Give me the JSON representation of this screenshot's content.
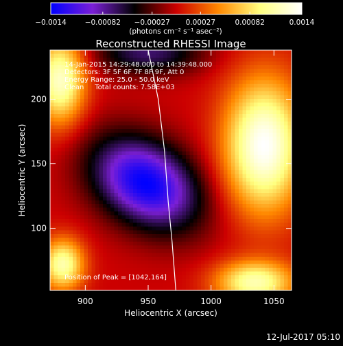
{
  "chart_data": {
    "type": "heatmap",
    "title": "Reconstructed RHESSI Image",
    "xlabel": "Heliocentric X (arcsec)",
    "ylabel": "Heliocentric Y (arcsec)",
    "xlim": [
      872,
      1064
    ],
    "ylim": [
      52,
      238
    ],
    "x_ticks": [
      {
        "value": 900,
        "label": "900"
      },
      {
        "value": 950,
        "label": "950"
      },
      {
        "value": 1000,
        "label": "1000"
      },
      {
        "value": 1050,
        "label": "1050"
      }
    ],
    "y_ticks": [
      {
        "value": 100,
        "label": "100"
      },
      {
        "value": 150,
        "label": "150"
      },
      {
        "value": 200,
        "label": "200"
      }
    ],
    "colorbar": {
      "min": -0.0014,
      "max": 0.0014,
      "ticks": [
        {
          "value": -0.0014,
          "label": "−0.0014"
        },
        {
          "value": -0.00082,
          "label": "−0.00082"
        },
        {
          "value": -0.00027,
          "label": "−0.00027"
        },
        {
          "value": 0.00027,
          "label": "0.00027"
        },
        {
          "value": 0.00082,
          "label": "0.00082"
        },
        {
          "value": 0.0014,
          "label": "0.0014"
        }
      ],
      "unit_label": "(photons cm⁻² s⁻¹ asec⁻²)",
      "colors": [
        "#0000ff",
        "#7b1fd6",
        "#000000",
        "#cc0000",
        "#ff8800",
        "#ffff80",
        "#ffffff"
      ]
    },
    "annotations": [
      "14-Jan-2015 14:29:48.000 to 14:39:48.000",
      "Detectors: 3F 5F 6F 7F 8F 9F, Att 0",
      "Energy Range: 25.0 - 50.0 keV",
      "Clean     Total counts: 7.58E+03"
    ],
    "peak_label": "Position of Peak = [1042,164]",
    "peak": {
      "x": 1042,
      "y": 164
    },
    "limb_curve": [
      [
        950,
        238
      ],
      [
        958,
        200
      ],
      [
        963,
        160
      ],
      [
        966,
        120
      ],
      [
        969,
        90
      ],
      [
        972,
        52
      ]
    ],
    "sources": [
      {
        "x": 948,
        "y": 135,
        "sigma_x": 32,
        "sigma_y": 22,
        "angle_deg": -30,
        "amp": -0.0014
      },
      {
        "x": 1042,
        "y": 164,
        "sigma_x": 22,
        "sigma_y": 36,
        "angle_deg": 0,
        "amp": 0.0014
      },
      {
        "x": 880,
        "y": 215,
        "sigma_x": 14,
        "sigma_y": 24,
        "angle_deg": 0,
        "amp": 0.0012
      },
      {
        "x": 1035,
        "y": 58,
        "sigma_x": 22,
        "sigma_y": 12,
        "angle_deg": 0,
        "amp": 0.0011
      },
      {
        "x": 882,
        "y": 72,
        "sigma_x": 12,
        "sigma_y": 14,
        "angle_deg": 0,
        "amp": 0.0011
      },
      {
        "x": 950,
        "y": 236,
        "sigma_x": 30,
        "sigma_y": 12,
        "angle_deg": 0,
        "amp": -0.0007
      }
    ]
  },
  "footer": {
    "date": "12-Jul-2017 05:10"
  }
}
